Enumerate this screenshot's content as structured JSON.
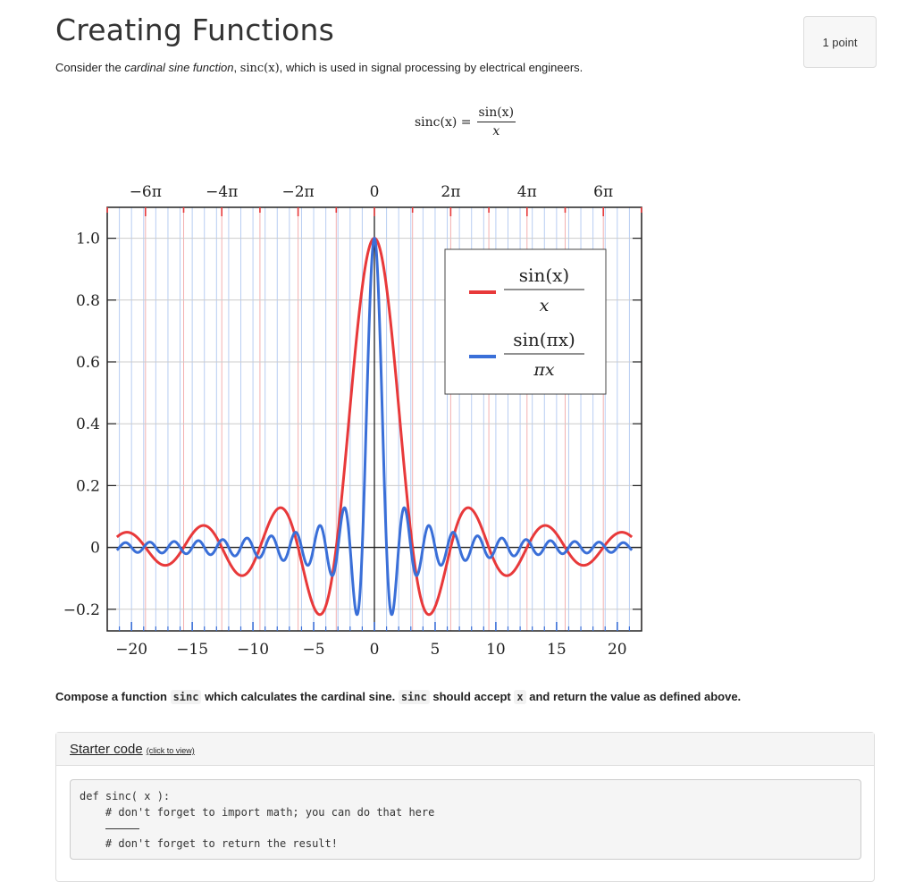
{
  "header": {
    "title": "Creating Functions",
    "points": "1 point"
  },
  "intro": {
    "pre": "Consider the ",
    "emph": "cardinal sine function",
    "mid": ", ",
    "math": "sinc(x)",
    "post": ", which is used in signal processing by electrical engineers."
  },
  "formula": {
    "lhs": "sinc(x) =",
    "numerator": "sin(x)",
    "denominator": "x"
  },
  "task": {
    "pre": "Compose a function ",
    "code1": "sinc",
    "mid1": " which calculates the cardinal sine. ",
    "code2": "sinc",
    "mid2": " should accept ",
    "code3": "x",
    "post": " and return the value as defined above."
  },
  "starter": {
    "link": "Starter code",
    "hint": "(click to view)",
    "lines": [
      "def sinc( x ):",
      "    # don't forget to import math; you can do that here",
      "",
      "    # don't forget to return the result!"
    ]
  },
  "chart_data": {
    "type": "line",
    "title": "",
    "xlim": [
      -22,
      22
    ],
    "ylim": [
      -0.27,
      1.1
    ],
    "x_ticks": [
      -20,
      -15,
      -10,
      -5,
      0,
      5,
      10,
      15,
      20
    ],
    "x_tick_labels": [
      "−20",
      "−15",
      "−10",
      "−5",
      "0",
      "5",
      "10",
      "15",
      "20"
    ],
    "top_tick_labels": [
      "−6π",
      "−4π",
      "−2π",
      "0",
      "2π",
      "4π",
      "6π"
    ],
    "y_ticks": [
      -0.2,
      0,
      0.2,
      0.4,
      0.6,
      0.8,
      1.0
    ],
    "y_tick_labels": [
      "−0.2",
      "0",
      "0.2",
      "0.4",
      "0.6",
      "0.8",
      "1.0"
    ],
    "grid": true,
    "legend_position": "top-right",
    "series": [
      {
        "label_num": "sin(x)",
        "label_den": "x",
        "color": "#e8393a",
        "formula": "sin(x)/x"
      },
      {
        "label_num": "sin(πx)",
        "label_den": "πx",
        "color": "#3a6fd8",
        "formula": "sin(πx)/(πx)"
      }
    ]
  }
}
